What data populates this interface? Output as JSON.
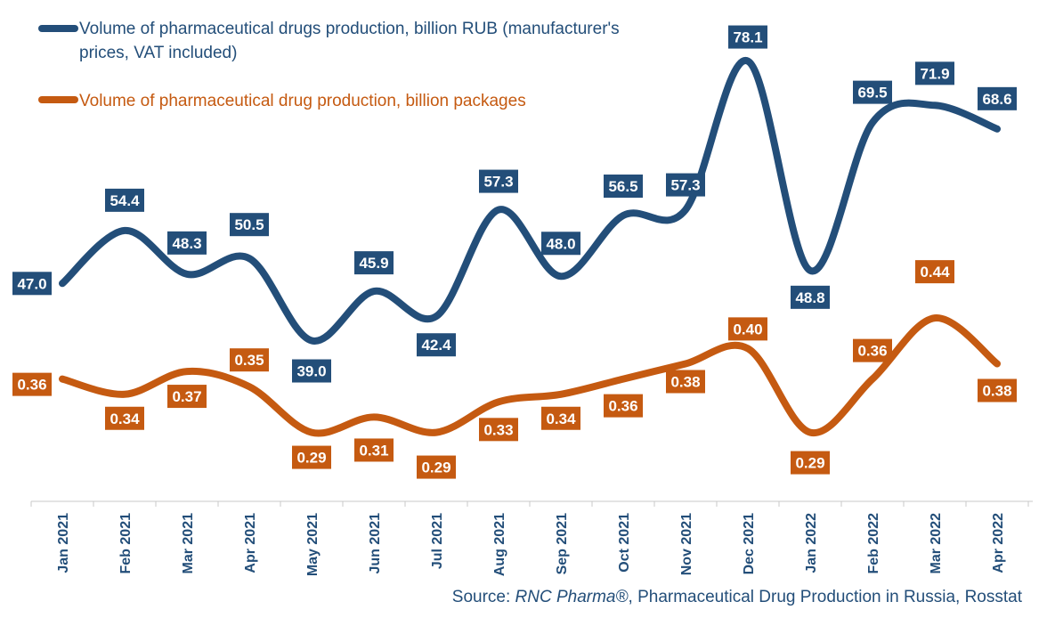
{
  "chart_data": {
    "type": "line",
    "categories": [
      "Jan 2021",
      "Feb 2021",
      "Mar 2021",
      "Apr 2021",
      "May 2021",
      "Jun 2021",
      "Jul 2021",
      "Aug 2021",
      "Sep 2021",
      "Oct 2021",
      "Nov 2021",
      "Dec 2021",
      "Jan 2022",
      "Feb 2022",
      "Mar 2022",
      "Apr 2022"
    ],
    "series": [
      {
        "name": "Volume of pharmaceutical drugs production, billion RUB (manufacturer's prices, VAT included)",
        "values": [
          47.0,
          54.4,
          48.3,
          50.5,
          39.0,
          45.9,
          42.4,
          57.3,
          48.0,
          56.5,
          57.3,
          78.1,
          48.8,
          69.5,
          71.9,
          68.6
        ],
        "labels": [
          "47.0",
          "54.4",
          "48.3",
          "50.5",
          "39.0",
          "45.9",
          "42.4",
          "57.3",
          "48.0",
          "56.5",
          "57.3",
          "78.1",
          "48.8",
          "69.5",
          "71.9",
          "68.6"
        ],
        "color": "#234E79"
      },
      {
        "name": "Volume of pharmaceutical drug production, billion packages",
        "values": [
          0.36,
          0.34,
          0.37,
          0.35,
          0.29,
          0.31,
          0.29,
          0.33,
          0.34,
          0.36,
          0.38,
          0.4,
          0.29,
          0.36,
          0.44,
          0.38
        ],
        "labels": [
          "0.36",
          "0.34",
          "0.37",
          "0.35",
          "0.29",
          "0.31",
          "0.29",
          "0.33",
          "0.34",
          "0.36",
          "0.38",
          "0.40",
          "0.29",
          "0.36",
          "0.44",
          "0.38"
        ],
        "color": "#C55A11"
      }
    ],
    "legend_position": "top-left",
    "grid": false,
    "axis_color": "#234E79"
  },
  "source": {
    "prefix": "Source: ",
    "brand": "RNC Pharma®",
    "suffix": ", Pharmaceutical Drug Production in Russia, Rosstat"
  }
}
